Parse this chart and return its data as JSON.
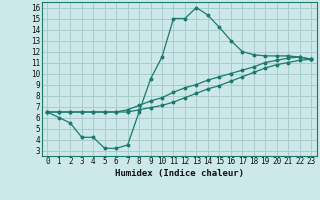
{
  "xlabel": "Humidex (Indice chaleur)",
  "bg_color": "#cce8e8",
  "grid_color": "#aacccc",
  "line_color": "#1a7a6e",
  "xlim": [
    -0.5,
    23.5
  ],
  "ylim": [
    2.5,
    16.5
  ],
  "xticks": [
    0,
    1,
    2,
    3,
    4,
    5,
    6,
    7,
    8,
    9,
    10,
    11,
    12,
    13,
    14,
    15,
    16,
    17,
    18,
    19,
    20,
    21,
    22,
    23
  ],
  "yticks": [
    3,
    4,
    5,
    6,
    7,
    8,
    9,
    10,
    11,
    12,
    13,
    14,
    15,
    16
  ],
  "line1_x": [
    0,
    1,
    2,
    3,
    4,
    5,
    6,
    7,
    8,
    9,
    10,
    11,
    12,
    13,
    14,
    15,
    16,
    17,
    18,
    19,
    20,
    21,
    22,
    23
  ],
  "line1_y": [
    6.5,
    6.0,
    5.5,
    4.2,
    4.2,
    3.2,
    3.2,
    3.5,
    6.5,
    9.5,
    11.5,
    15.0,
    15.0,
    16.0,
    15.3,
    14.2,
    13.0,
    12.0,
    11.7,
    11.6,
    11.6,
    11.6,
    11.5,
    11.3
  ],
  "line2_x": [
    0,
    1,
    2,
    3,
    4,
    5,
    6,
    7,
    8,
    9,
    10,
    11,
    12,
    13,
    14,
    15,
    16,
    17,
    18,
    19,
    20,
    21,
    22,
    23
  ],
  "line2_y": [
    6.5,
    6.5,
    6.5,
    6.5,
    6.5,
    6.5,
    6.5,
    6.7,
    7.1,
    7.5,
    7.8,
    8.3,
    8.7,
    9.0,
    9.4,
    9.7,
    10.0,
    10.3,
    10.6,
    11.0,
    11.2,
    11.4,
    11.5,
    11.3
  ],
  "line3_x": [
    0,
    1,
    2,
    3,
    4,
    5,
    6,
    7,
    8,
    9,
    10,
    11,
    12,
    13,
    14,
    15,
    16,
    17,
    18,
    19,
    20,
    21,
    22,
    23
  ],
  "line3_y": [
    6.5,
    6.5,
    6.5,
    6.5,
    6.5,
    6.5,
    6.5,
    6.5,
    6.7,
    6.9,
    7.1,
    7.4,
    7.8,
    8.2,
    8.6,
    8.9,
    9.3,
    9.7,
    10.1,
    10.5,
    10.8,
    11.0,
    11.2,
    11.3
  ],
  "xlabel_fontsize": 6.5,
  "tick_fontsize": 5.5
}
